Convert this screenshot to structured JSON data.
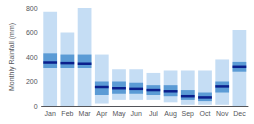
{
  "chart_data": {
    "type": "range_bar",
    "ylabel": "Monthly Rainfall (mm)",
    "categories": [
      "Jan",
      "Feb",
      "Mar",
      "Apr",
      "May",
      "Jun",
      "Jul",
      "Aug",
      "Sep",
      "Oct",
      "Nov",
      "Dec"
    ],
    "series": [
      {
        "type": "range",
        "color": "#c5ddf4",
        "low": [
          0,
          0,
          0,
          20,
          50,
          50,
          50,
          30,
          10,
          10,
          10,
          0
        ],
        "high": [
          770,
          600,
          800,
          420,
          300,
          300,
          270,
          290,
          290,
          290,
          380,
          620
        ]
      },
      {
        "type": "range",
        "color": "#5b9bd5",
        "low": [
          310,
          310,
          310,
          90,
          100,
          100,
          90,
          80,
          50,
          40,
          110,
          280
        ],
        "high": [
          430,
          420,
          420,
          200,
          200,
          190,
          170,
          170,
          130,
          110,
          200,
          360
        ]
      },
      {
        "type": "level",
        "color": "#0b1f8c",
        "values": [
          355,
          350,
          345,
          155,
          145,
          140,
          130,
          120,
          80,
          70,
          160,
          320
        ]
      }
    ],
    "ylim": [
      0,
      800
    ],
    "yticks": [
      0,
      200,
      400,
      600,
      800
    ],
    "grid": false
  }
}
